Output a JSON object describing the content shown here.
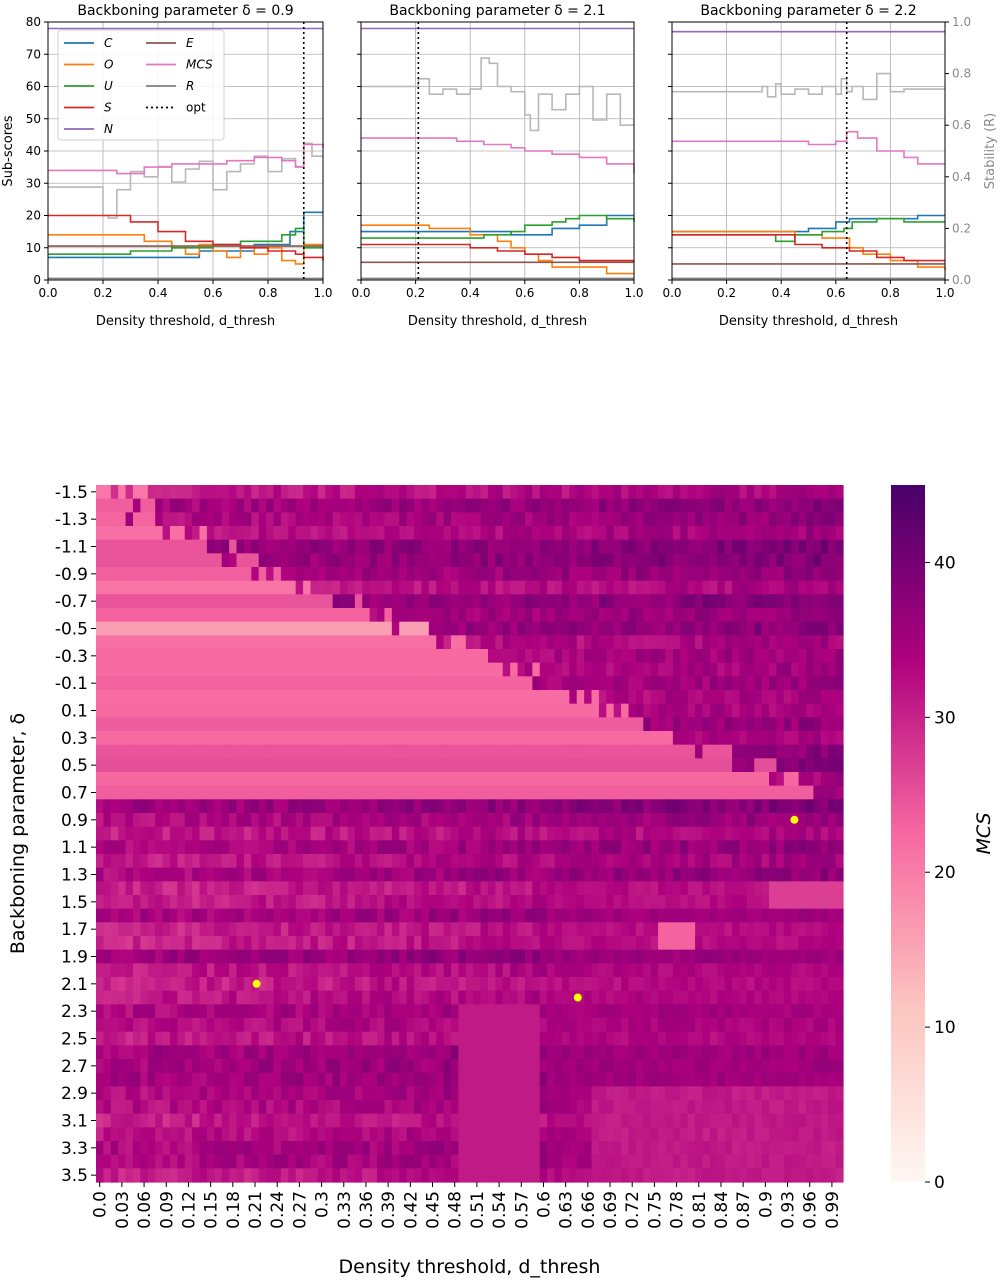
{
  "chart_data": [
    {
      "type": "line",
      "title": "Backboning parameter δ = 0.9",
      "xlabel": "Density threshold, d_thresh",
      "ylabel": "Sub-scores",
      "xlim": [
        0,
        1
      ],
      "ylim": [
        0,
        80
      ],
      "xticks": [
        "0.0",
        "0.2",
        "0.4",
        "0.6",
        "0.8",
        "1.0"
      ],
      "yticks": [
        "0",
        "10",
        "20",
        "30",
        "40",
        "50",
        "60",
        "70",
        "80"
      ],
      "grid": true,
      "legend": "top-left",
      "opt": 0.93,
      "series": [
        {
          "name": "C",
          "color": "#1f77b4",
          "x": [
            0,
            0.45,
            0.55,
            0.75,
            0.88,
            0.93,
            1.0
          ],
          "y": [
            7,
            7,
            9,
            11,
            15,
            21,
            21
          ]
        },
        {
          "name": "O",
          "color": "#ff7f0e",
          "x": [
            0,
            0.2,
            0.35,
            0.45,
            0.5,
            0.55,
            0.6,
            0.65,
            0.7,
            0.75,
            0.8,
            0.85,
            0.9,
            0.93,
            1.0
          ],
          "y": [
            14,
            14,
            12,
            10,
            8,
            11,
            9,
            7,
            10,
            8,
            10,
            6,
            5,
            11,
            11
          ]
        },
        {
          "name": "U",
          "color": "#2ca02c",
          "x": [
            0,
            0.3,
            0.45,
            0.6,
            0.7,
            0.8,
            0.85,
            0.9,
            0.93,
            1.0
          ],
          "y": [
            8,
            9,
            10,
            11,
            12,
            12,
            14,
            16,
            10,
            10
          ]
        },
        {
          "name": "S",
          "color": "#d62728",
          "x": [
            0,
            0.2,
            0.3,
            0.4,
            0.5,
            0.6,
            0.7,
            0.8,
            0.9,
            0.93,
            1.0
          ],
          "y": [
            20,
            20,
            18,
            15,
            12,
            11,
            10,
            9,
            8,
            7,
            6
          ]
        },
        {
          "name": "N",
          "color": "#9467bd",
          "x": [
            0,
            1.0
          ],
          "y": [
            78,
            78
          ]
        },
        {
          "name": "E",
          "color": "#8c564b",
          "x": [
            0,
            1.0
          ],
          "y": [
            10.5,
            10.5
          ]
        },
        {
          "name": "MCS",
          "color": "#e377c2",
          "x": [
            0,
            0.2,
            0.25,
            0.35,
            0.45,
            0.55,
            0.65,
            0.75,
            0.85,
            0.9,
            0.93,
            1.0
          ],
          "y": [
            34,
            34,
            33,
            35,
            36,
            36,
            37,
            38,
            37,
            35,
            42,
            41
          ]
        },
        {
          "name": "R",
          "color": "#7f7f7f",
          "x": [
            0,
            1.0
          ],
          "y": [
            0.5,
            0.5
          ]
        }
      ],
      "stability": {
        "axis_label": "Stability (R)",
        "yticks": [
          "0.0",
          "0.2",
          "0.4",
          "0.6",
          "0.8",
          "1.0"
        ],
        "ylim": [
          0,
          1
        ],
        "x": [
          0,
          0.18,
          0.2,
          0.22,
          0.25,
          0.3,
          0.35,
          0.4,
          0.45,
          0.5,
          0.55,
          0.6,
          0.65,
          0.7,
          0.75,
          0.8,
          0.85,
          0.9,
          0.93,
          0.96,
          1.0
        ],
        "y": [
          0.36,
          0.36,
          0.25,
          0.24,
          0.35,
          0.42,
          0.4,
          0.44,
          0.38,
          0.43,
          0.46,
          0.35,
          0.42,
          0.45,
          0.48,
          0.42,
          0.47,
          0.44,
          0.53,
          0.48,
          0.48
        ]
      }
    },
    {
      "type": "line",
      "title": "Backboning parameter δ = 2.1",
      "xlabel": "Density threshold, d_thresh",
      "ylabel": "Sub-scores",
      "xlim": [
        0,
        1
      ],
      "ylim": [
        0,
        80
      ],
      "xticks": [
        "0.0",
        "0.2",
        "0.4",
        "0.6",
        "0.8",
        "1.0"
      ],
      "grid": true,
      "opt": 0.21,
      "series": [
        {
          "name": "C",
          "color": "#1f77b4",
          "x": [
            0,
            0.4,
            0.55,
            0.7,
            0.8,
            0.9,
            1.0
          ],
          "y": [
            15,
            15,
            14,
            16,
            17,
            20,
            20
          ]
        },
        {
          "name": "O",
          "color": "#ff7f0e",
          "x": [
            0,
            0.25,
            0.4,
            0.5,
            0.55,
            0.6,
            0.65,
            0.7,
            0.8,
            0.9,
            1.0
          ],
          "y": [
            17,
            16,
            14,
            12,
            10,
            8,
            6,
            4,
            4,
            2,
            2
          ]
        },
        {
          "name": "U",
          "color": "#2ca02c",
          "x": [
            0,
            0.3,
            0.45,
            0.55,
            0.6,
            0.7,
            0.75,
            0.8,
            0.9,
            1.0
          ],
          "y": [
            13,
            13,
            14,
            15,
            17,
            18,
            19,
            20,
            19,
            18
          ]
        },
        {
          "name": "S",
          "color": "#d62728",
          "x": [
            0,
            0.3,
            0.4,
            0.5,
            0.6,
            0.7,
            0.8,
            1.0
          ],
          "y": [
            11,
            11,
            10,
            9,
            8,
            7,
            6,
            6
          ]
        },
        {
          "name": "N",
          "color": "#9467bd",
          "x": [
            0,
            1.0
          ],
          "y": [
            78,
            78
          ]
        },
        {
          "name": "E",
          "color": "#8c564b",
          "x": [
            0,
            1.0
          ],
          "y": [
            5.5,
            5.5
          ]
        },
        {
          "name": "MCS",
          "color": "#e377c2",
          "x": [
            0,
            0.2,
            0.35,
            0.45,
            0.55,
            0.6,
            0.7,
            0.8,
            0.9,
            1.0
          ],
          "y": [
            44,
            44,
            43,
            42,
            41,
            40,
            39,
            38,
            36,
            33
          ]
        },
        {
          "name": "R",
          "color": "#7f7f7f",
          "x": [
            0,
            1.0
          ],
          "y": [
            0.5,
            0.5
          ]
        }
      ],
      "stability": {
        "axis_label": "Stability (R)",
        "yticks": [
          "0.0",
          "0.2",
          "0.4",
          "0.6",
          "0.8",
          "1.0"
        ],
        "ylim": [
          0,
          1
        ],
        "x": [
          0,
          0.18,
          0.21,
          0.25,
          0.3,
          0.35,
          0.4,
          0.44,
          0.47,
          0.5,
          0.55,
          0.6,
          0.62,
          0.65,
          0.7,
          0.75,
          0.8,
          0.85,
          0.9,
          0.95,
          1.0
        ],
        "y": [
          0.75,
          0.75,
          0.78,
          0.72,
          0.74,
          0.72,
          0.74,
          0.86,
          0.84,
          0.75,
          0.73,
          0.64,
          0.58,
          0.72,
          0.66,
          0.72,
          0.75,
          0.62,
          0.72,
          0.6,
          0.6
        ]
      }
    },
    {
      "type": "line",
      "title": "Backboning parameter δ = 2.2",
      "xlabel": "Density threshold, d_thresh",
      "ylabel": "Sub-scores",
      "xlim": [
        0,
        1
      ],
      "ylim": [
        0,
        80
      ],
      "xticks": [
        "0.0",
        "0.2",
        "0.4",
        "0.6",
        "0.8",
        "1.0"
      ],
      "grid": true,
      "opt": 0.64,
      "series": [
        {
          "name": "C",
          "color": "#1f77b4",
          "x": [
            0,
            0.35,
            0.5,
            0.6,
            0.65,
            0.75,
            0.9,
            1.0
          ],
          "y": [
            15,
            15,
            16,
            18,
            19,
            19,
            20,
            20
          ]
        },
        {
          "name": "O",
          "color": "#ff7f0e",
          "x": [
            0,
            0.35,
            0.45,
            0.55,
            0.65,
            0.7,
            0.8,
            0.9,
            1.0
          ],
          "y": [
            15,
            15,
            14,
            13,
            10,
            8,
            6,
            4,
            3
          ]
        },
        {
          "name": "U",
          "color": "#2ca02c",
          "x": [
            0,
            0.33,
            0.38,
            0.45,
            0.55,
            0.63,
            0.66,
            0.75,
            0.85,
            1.0
          ],
          "y": [
            14,
            14,
            12,
            14,
            15,
            16,
            18,
            19,
            18,
            18
          ]
        },
        {
          "name": "S",
          "color": "#d62728",
          "x": [
            0,
            0.35,
            0.45,
            0.55,
            0.65,
            0.75,
            0.85,
            1.0
          ],
          "y": [
            14,
            14,
            11,
            10,
            9,
            7,
            6,
            6
          ]
        },
        {
          "name": "N",
          "color": "#9467bd",
          "x": [
            0,
            1.0
          ],
          "y": [
            77,
            77
          ]
        },
        {
          "name": "E",
          "color": "#8c564b",
          "x": [
            0,
            1.0
          ],
          "y": [
            5,
            5
          ]
        },
        {
          "name": "MCS",
          "color": "#e377c2",
          "x": [
            0,
            0.3,
            0.5,
            0.6,
            0.64,
            0.68,
            0.75,
            0.85,
            0.9,
            1.0
          ],
          "y": [
            43,
            43,
            42,
            43,
            46,
            44,
            40,
            38,
            36,
            36
          ]
        },
        {
          "name": "R",
          "color": "#7f7f7f",
          "x": [
            0,
            1.0
          ],
          "y": [
            0.5,
            0.5
          ]
        }
      ],
      "stability": {
        "axis_label": "Stability (R)",
        "yticks": [
          "0.0",
          "0.2",
          "0.4",
          "0.6",
          "0.8",
          "1.0"
        ],
        "ylim": [
          0,
          1
        ],
        "x": [
          0,
          0.3,
          0.33,
          0.35,
          0.38,
          0.4,
          0.45,
          0.5,
          0.55,
          0.6,
          0.62,
          0.64,
          0.66,
          0.7,
          0.75,
          0.8,
          0.85,
          0.9,
          1.0
        ],
        "y": [
          0.73,
          0.73,
          0.75,
          0.71,
          0.76,
          0.72,
          0.74,
          0.72,
          0.75,
          0.72,
          0.78,
          0.73,
          0.75,
          0.7,
          0.8,
          0.73,
          0.74,
          0.74,
          0.74
        ]
      }
    },
    {
      "type": "heatmap",
      "xlabel": "Density threshold, d_thresh",
      "ylabel": "Backboning parameter, δ",
      "colorbar_label": "MCS",
      "colorbar_ticks": [
        "0",
        "10",
        "20",
        "30",
        "40"
      ],
      "color_range": [
        0,
        45
      ],
      "colormap": [
        "#fff7f3",
        "#fcc5c0",
        "#f768a1",
        "#ae017e",
        "#49006a"
      ],
      "x_range": [
        0,
        1
      ],
      "x_ticks": [
        "0.0",
        "0.03",
        "0.06",
        "0.09",
        "0.12",
        "0.15",
        "0.18",
        "0.21",
        "0.24",
        "0.27",
        "0.3",
        "0.33",
        "0.36",
        "0.39",
        "0.42",
        "0.45",
        "0.48",
        "0.51",
        "0.54",
        "0.57",
        "0.6",
        "0.63",
        "0.66",
        "0.69",
        "0.72",
        "0.75",
        "0.78",
        "0.81",
        "0.84",
        "0.87",
        "0.9",
        "0.93",
        "0.96",
        "0.99"
      ],
      "y_range": [
        -1.5,
        3.5
      ],
      "y_ticks": [
        "-1.5",
        "-1.3",
        "-1.1",
        "-0.9",
        "-0.7",
        "-0.5",
        "-0.3",
        "-0.1",
        "0.1",
        "0.3",
        "0.5",
        "0.7",
        "0.9",
        "1.1",
        "1.3",
        "1.5",
        "1.7",
        "1.9",
        "2.1",
        "2.3",
        "2.5",
        "2.7",
        "2.9",
        "3.1",
        "3.3",
        "3.5"
      ],
      "markers": [
        {
          "x": 0.93,
          "y": 0.9,
          "color": "#ffff00"
        },
        {
          "x": 0.21,
          "y": 2.1,
          "color": "#ffff00"
        },
        {
          "x": 0.64,
          "y": 2.2,
          "color": "#ffff00"
        }
      ]
    }
  ]
}
